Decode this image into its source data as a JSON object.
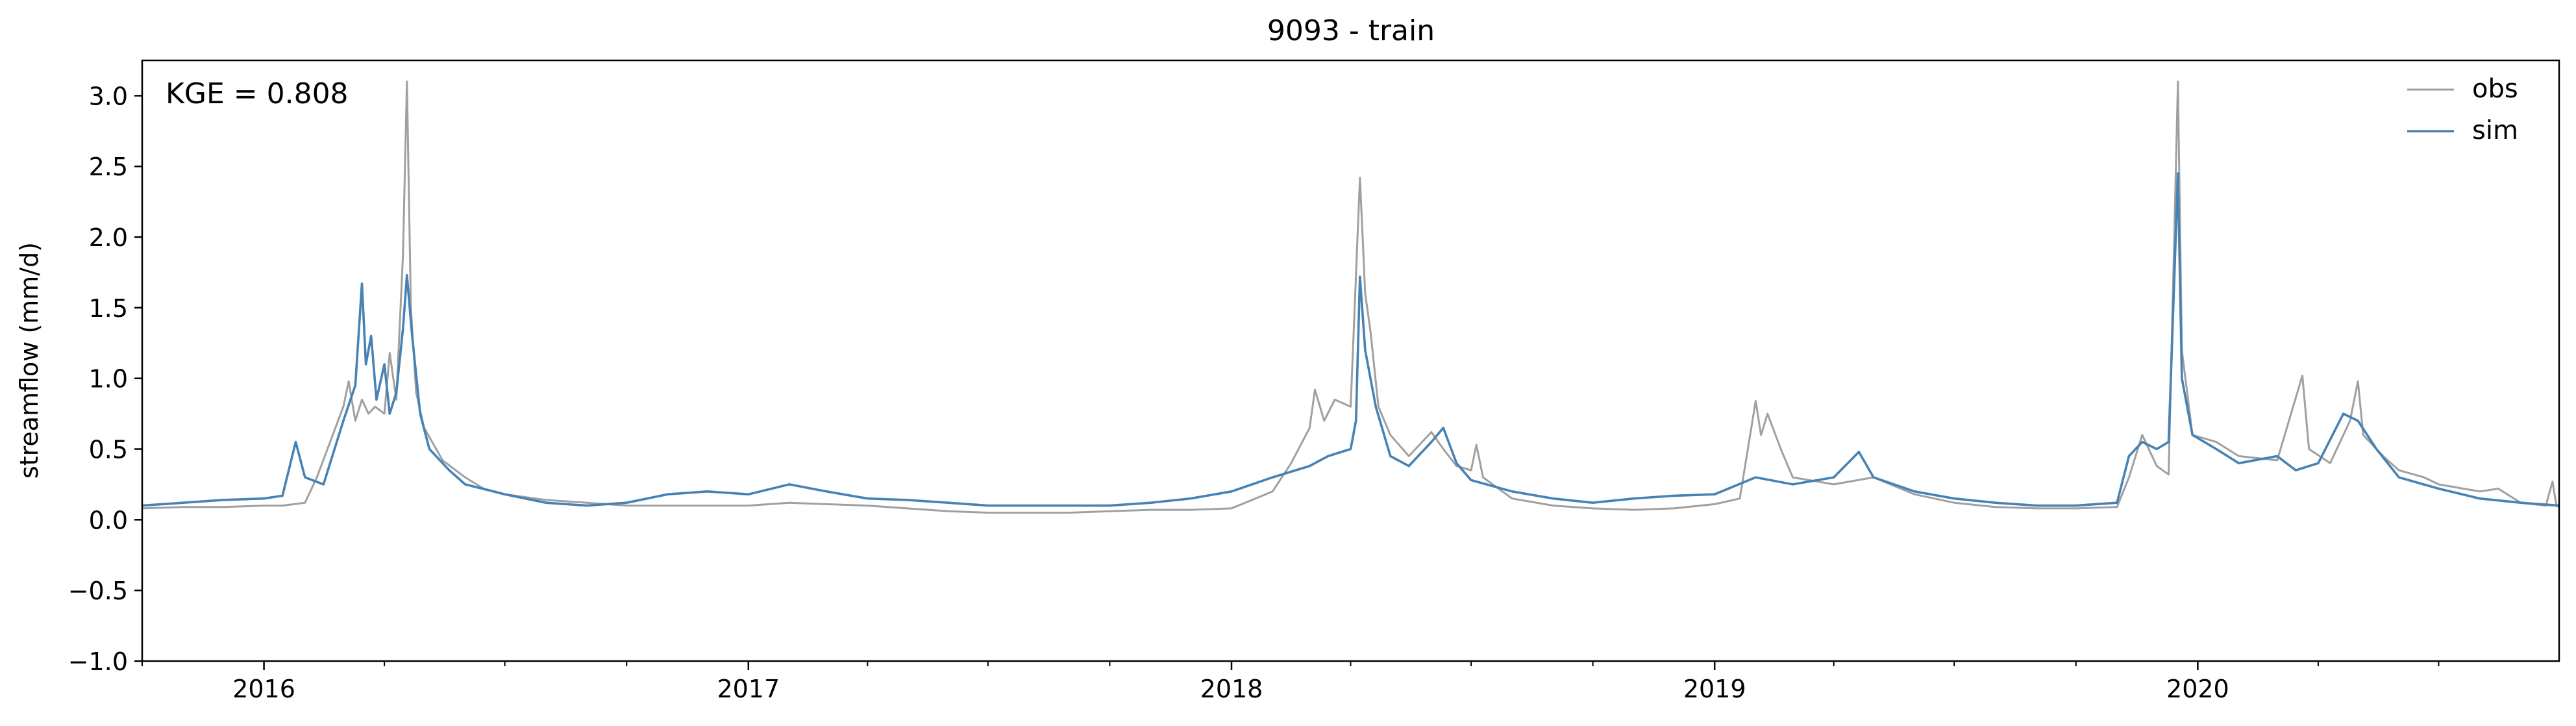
{
  "chart_data": {
    "type": "line",
    "title": "9093 - train",
    "ylabel": "streamflow (mm/d)",
    "xlabel": "",
    "annotation": "KGE = 0.808",
    "legend_position": "top-right",
    "grid": false,
    "xlim": [
      "2015-10-01",
      "2020-09-30"
    ],
    "ylim": [
      -1.0,
      3.25
    ],
    "yticks": [
      -1.0,
      -0.5,
      0.0,
      0.5,
      1.0,
      1.5,
      2.0,
      2.5,
      3.0
    ],
    "ytick_labels": [
      "−1.0",
      "−0.5",
      "0.0",
      "0.5",
      "1.0",
      "1.5",
      "2.0",
      "2.5",
      "3.0"
    ],
    "xticks": [
      {
        "date": "2016-01-01",
        "label": "2016"
      },
      {
        "date": "2017-01-01",
        "label": "2017"
      },
      {
        "date": "2018-01-01",
        "label": "2018"
      },
      {
        "date": "2019-01-01",
        "label": "2019"
      },
      {
        "date": "2020-01-01",
        "label": "2020"
      }
    ],
    "series": [
      {
        "name": "obs",
        "color": "#a0a0a0",
        "points": [
          [
            "2015-10-01",
            0.08
          ],
          [
            "2015-11-01",
            0.09
          ],
          [
            "2015-12-01",
            0.09
          ],
          [
            "2016-01-01",
            0.1
          ],
          [
            "2016-01-15",
            0.1
          ],
          [
            "2016-02-01",
            0.12
          ],
          [
            "2016-02-10",
            0.3
          ],
          [
            "2016-02-20",
            0.55
          ],
          [
            "2016-03-01",
            0.8
          ],
          [
            "2016-03-05",
            0.98
          ],
          [
            "2016-03-10",
            0.7
          ],
          [
            "2016-03-15",
            0.85
          ],
          [
            "2016-03-20",
            0.75
          ],
          [
            "2016-03-25",
            0.8
          ],
          [
            "2016-04-01",
            0.75
          ],
          [
            "2016-04-05",
            1.18
          ],
          [
            "2016-04-10",
            0.85
          ],
          [
            "2016-04-15",
            1.87
          ],
          [
            "2016-04-18",
            3.1
          ],
          [
            "2016-04-21",
            1.5
          ],
          [
            "2016-04-25",
            0.9
          ],
          [
            "2016-05-01",
            0.65
          ],
          [
            "2016-05-15",
            0.42
          ],
          [
            "2016-06-01",
            0.3
          ],
          [
            "2016-06-15",
            0.22
          ],
          [
            "2016-07-01",
            0.18
          ],
          [
            "2016-08-01",
            0.14
          ],
          [
            "2016-09-01",
            0.12
          ],
          [
            "2016-10-01",
            0.1
          ],
          [
            "2016-11-01",
            0.1
          ],
          [
            "2016-12-01",
            0.1
          ],
          [
            "2017-01-01",
            0.1
          ],
          [
            "2017-02-01",
            0.12
          ],
          [
            "2017-03-01",
            0.11
          ],
          [
            "2017-04-01",
            0.1
          ],
          [
            "2017-05-01",
            0.08
          ],
          [
            "2017-06-01",
            0.06
          ],
          [
            "2017-07-01",
            0.05
          ],
          [
            "2017-08-01",
            0.05
          ],
          [
            "2017-09-01",
            0.05
          ],
          [
            "2017-10-01",
            0.06
          ],
          [
            "2017-11-01",
            0.07
          ],
          [
            "2017-12-01",
            0.07
          ],
          [
            "2018-01-01",
            0.08
          ],
          [
            "2018-02-01",
            0.2
          ],
          [
            "2018-02-15",
            0.4
          ],
          [
            "2018-03-01",
            0.65
          ],
          [
            "2018-03-05",
            0.92
          ],
          [
            "2018-03-12",
            0.7
          ],
          [
            "2018-03-20",
            0.85
          ],
          [
            "2018-04-01",
            0.8
          ],
          [
            "2018-04-08",
            2.42
          ],
          [
            "2018-04-12",
            1.6
          ],
          [
            "2018-04-16",
            1.33
          ],
          [
            "2018-04-22",
            0.8
          ],
          [
            "2018-05-01",
            0.6
          ],
          [
            "2018-05-15",
            0.45
          ],
          [
            "2018-06-01",
            0.62
          ],
          [
            "2018-06-10",
            0.5
          ],
          [
            "2018-06-20",
            0.38
          ],
          [
            "2018-07-01",
            0.35
          ],
          [
            "2018-07-05",
            0.53
          ],
          [
            "2018-07-10",
            0.3
          ],
          [
            "2018-08-01",
            0.15
          ],
          [
            "2018-09-01",
            0.1
          ],
          [
            "2018-10-01",
            0.08
          ],
          [
            "2018-11-01",
            0.07
          ],
          [
            "2018-12-01",
            0.08
          ],
          [
            "2019-01-01",
            0.11
          ],
          [
            "2019-01-20",
            0.15
          ],
          [
            "2019-02-01",
            0.84
          ],
          [
            "2019-02-05",
            0.6
          ],
          [
            "2019-02-10",
            0.75
          ],
          [
            "2019-02-20",
            0.5
          ],
          [
            "2019-03-01",
            0.3
          ],
          [
            "2019-04-01",
            0.25
          ],
          [
            "2019-05-01",
            0.3
          ],
          [
            "2019-06-01",
            0.18
          ],
          [
            "2019-07-01",
            0.12
          ],
          [
            "2019-08-01",
            0.09
          ],
          [
            "2019-09-01",
            0.08
          ],
          [
            "2019-10-01",
            0.08
          ],
          [
            "2019-11-01",
            0.09
          ],
          [
            "2019-11-10",
            0.3
          ],
          [
            "2019-11-20",
            0.6
          ],
          [
            "2019-12-01",
            0.38
          ],
          [
            "2019-12-10",
            0.32
          ],
          [
            "2019-12-17",
            3.1
          ],
          [
            "2019-12-20",
            1.2
          ],
          [
            "2019-12-28",
            0.6
          ],
          [
            "2020-01-15",
            0.55
          ],
          [
            "2020-02-01",
            0.45
          ],
          [
            "2020-03-01",
            0.42
          ],
          [
            "2020-03-20",
            1.02
          ],
          [
            "2020-03-25",
            0.5
          ],
          [
            "2020-04-10",
            0.4
          ],
          [
            "2020-04-25",
            0.7
          ],
          [
            "2020-05-01",
            0.98
          ],
          [
            "2020-05-05",
            0.6
          ],
          [
            "2020-05-20",
            0.45
          ],
          [
            "2020-06-01",
            0.35
          ],
          [
            "2020-06-20",
            0.3
          ],
          [
            "2020-07-01",
            0.25
          ],
          [
            "2020-08-01",
            0.2
          ],
          [
            "2020-08-15",
            0.22
          ],
          [
            "2020-09-01",
            0.12
          ],
          [
            "2020-09-20",
            0.1
          ],
          [
            "2020-09-25",
            0.27
          ],
          [
            "2020-09-28",
            0.1
          ],
          [
            "2020-09-30",
            0.09
          ]
        ]
      },
      {
        "name": "sim",
        "color": "#4682b4",
        "points": [
          [
            "2015-10-01",
            0.1
          ],
          [
            "2015-11-01",
            0.12
          ],
          [
            "2015-12-01",
            0.14
          ],
          [
            "2016-01-01",
            0.15
          ],
          [
            "2016-01-15",
            0.17
          ],
          [
            "2016-01-25",
            0.55
          ],
          [
            "2016-02-01",
            0.3
          ],
          [
            "2016-02-15",
            0.25
          ],
          [
            "2016-03-01",
            0.7
          ],
          [
            "2016-03-10",
            0.95
          ],
          [
            "2016-03-15",
            1.67
          ],
          [
            "2016-03-18",
            1.1
          ],
          [
            "2016-03-22",
            1.3
          ],
          [
            "2016-03-26",
            0.85
          ],
          [
            "2016-04-01",
            1.1
          ],
          [
            "2016-04-05",
            0.75
          ],
          [
            "2016-04-10",
            0.9
          ],
          [
            "2016-04-15",
            1.35
          ],
          [
            "2016-04-18",
            1.73
          ],
          [
            "2016-04-22",
            1.3
          ],
          [
            "2016-04-28",
            0.75
          ],
          [
            "2016-05-05",
            0.5
          ],
          [
            "2016-05-20",
            0.35
          ],
          [
            "2016-06-01",
            0.25
          ],
          [
            "2016-07-01",
            0.18
          ],
          [
            "2016-08-01",
            0.12
          ],
          [
            "2016-09-01",
            0.1
          ],
          [
            "2016-10-01",
            0.12
          ],
          [
            "2016-11-01",
            0.18
          ],
          [
            "2016-12-01",
            0.2
          ],
          [
            "2017-01-01",
            0.18
          ],
          [
            "2017-02-01",
            0.25
          ],
          [
            "2017-03-01",
            0.2
          ],
          [
            "2017-04-01",
            0.15
          ],
          [
            "2017-05-01",
            0.14
          ],
          [
            "2017-06-01",
            0.12
          ],
          [
            "2017-07-01",
            0.1
          ],
          [
            "2017-08-01",
            0.1
          ],
          [
            "2017-09-01",
            0.1
          ],
          [
            "2017-10-01",
            0.1
          ],
          [
            "2017-11-01",
            0.12
          ],
          [
            "2017-12-01",
            0.15
          ],
          [
            "2018-01-01",
            0.2
          ],
          [
            "2018-02-01",
            0.3
          ],
          [
            "2018-03-01",
            0.38
          ],
          [
            "2018-03-15",
            0.45
          ],
          [
            "2018-04-01",
            0.5
          ],
          [
            "2018-04-05",
            0.7
          ],
          [
            "2018-04-08",
            1.72
          ],
          [
            "2018-04-12",
            1.2
          ],
          [
            "2018-04-20",
            0.8
          ],
          [
            "2018-05-01",
            0.45
          ],
          [
            "2018-05-15",
            0.38
          ],
          [
            "2018-06-01",
            0.55
          ],
          [
            "2018-06-10",
            0.65
          ],
          [
            "2018-06-20",
            0.4
          ],
          [
            "2018-07-01",
            0.28
          ],
          [
            "2018-08-01",
            0.2
          ],
          [
            "2018-09-01",
            0.15
          ],
          [
            "2018-10-01",
            0.12
          ],
          [
            "2018-11-01",
            0.15
          ],
          [
            "2018-12-01",
            0.17
          ],
          [
            "2019-01-01",
            0.18
          ],
          [
            "2019-02-01",
            0.3
          ],
          [
            "2019-03-01",
            0.25
          ],
          [
            "2019-04-01",
            0.3
          ],
          [
            "2019-04-20",
            0.48
          ],
          [
            "2019-05-01",
            0.3
          ],
          [
            "2019-06-01",
            0.2
          ],
          [
            "2019-07-01",
            0.15
          ],
          [
            "2019-08-01",
            0.12
          ],
          [
            "2019-09-01",
            0.1
          ],
          [
            "2019-10-01",
            0.1
          ],
          [
            "2019-11-01",
            0.12
          ],
          [
            "2019-11-10",
            0.45
          ],
          [
            "2019-11-20",
            0.55
          ],
          [
            "2019-12-01",
            0.5
          ],
          [
            "2019-12-10",
            0.55
          ],
          [
            "2019-12-17",
            2.45
          ],
          [
            "2019-12-20",
            1.0
          ],
          [
            "2019-12-28",
            0.6
          ],
          [
            "2020-01-15",
            0.5
          ],
          [
            "2020-02-01",
            0.4
          ],
          [
            "2020-03-01",
            0.45
          ],
          [
            "2020-03-15",
            0.35
          ],
          [
            "2020-04-01",
            0.4
          ],
          [
            "2020-04-20",
            0.75
          ],
          [
            "2020-05-01",
            0.7
          ],
          [
            "2020-05-15",
            0.5
          ],
          [
            "2020-06-01",
            0.3
          ],
          [
            "2020-07-01",
            0.22
          ],
          [
            "2020-08-01",
            0.15
          ],
          [
            "2020-09-01",
            0.12
          ],
          [
            "2020-09-30",
            0.1
          ]
        ]
      }
    ]
  }
}
